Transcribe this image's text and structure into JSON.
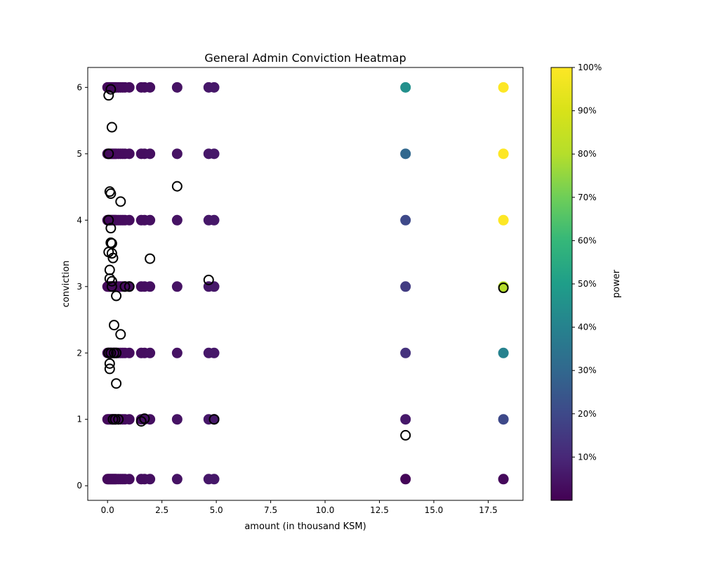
{
  "chart_data": {
    "type": "scatter",
    "title": "General Admin Conviction Heatmap",
    "xlabel": "amount (in thousand KSM)",
    "ylabel": "conviction",
    "xlim": [
      -0.91,
      19.1
    ],
    "ylim": [
      -0.22,
      6.3
    ],
    "x_ticks": [
      0,
      2.5,
      5,
      7.5,
      10,
      12.5,
      15,
      17.5
    ],
    "x_tick_labels": [
      "0.0",
      "2.5",
      "5.0",
      "7.5",
      "10.0",
      "12.5",
      "15.0",
      "17.5"
    ],
    "y_ticks": [
      0,
      1,
      2,
      3,
      4,
      5,
      6
    ],
    "y_tick_labels": [
      "0",
      "1",
      "2",
      "3",
      "4",
      "5",
      "6"
    ],
    "grid": false,
    "colormap": "viridis",
    "colorbar": {
      "label": "power",
      "range": [
        0.0,
        1.0
      ],
      "ticks": [
        0.1,
        0.2,
        0.3,
        0.4,
        0.5,
        0.6,
        0.7,
        0.8,
        0.9,
        1.0
      ],
      "tick_labels": [
        "10%",
        "20%",
        "30%",
        "40%",
        "50%",
        "60%",
        "70%",
        "80%",
        "90%",
        "100%"
      ]
    },
    "filled_points": {
      "conviction_levels": [
        0.1,
        1,
        2,
        3,
        4,
        5,
        6
      ],
      "amounts": [
        0.0,
        0.05,
        0.1,
        0.15,
        0.2,
        0.25,
        0.3,
        0.35,
        0.4,
        0.5,
        0.6,
        0.7,
        0.8,
        1.0,
        1.55,
        1.7,
        1.95,
        3.2,
        4.65,
        4.9,
        13.7,
        18.2
      ],
      "power_by_conviction": {
        "13.7": [
          0.01,
          0.06,
          0.13,
          0.16,
          0.2,
          0.3,
          0.45
        ],
        "18.2": [
          0.02,
          0.2,
          0.4,
          0.8,
          1.0,
          1.0,
          1.0
        ]
      },
      "default_power": 0.06,
      "default_power_base": 0.02
    },
    "vote_markers": {
      "style": "open-circle",
      "points": [
        {
          "x": 0.05,
          "y": 5.88
        },
        {
          "x": 0.15,
          "y": 5.97
        },
        {
          "x": 0.2,
          "y": 5.4
        },
        {
          "x": 0.05,
          "y": 5.0
        },
        {
          "x": 0.1,
          "y": 4.43
        },
        {
          "x": 0.15,
          "y": 4.4
        },
        {
          "x": 0.6,
          "y": 4.28
        },
        {
          "x": 3.2,
          "y": 4.51
        },
        {
          "x": 0.05,
          "y": 4.0
        },
        {
          "x": 0.15,
          "y": 3.88
        },
        {
          "x": 0.15,
          "y": 3.66
        },
        {
          "x": 0.2,
          "y": 3.65
        },
        {
          "x": 0.05,
          "y": 3.52
        },
        {
          "x": 0.2,
          "y": 3.5
        },
        {
          "x": 0.25,
          "y": 3.43
        },
        {
          "x": 1.95,
          "y": 3.42
        },
        {
          "x": 0.1,
          "y": 3.25
        },
        {
          "x": 0.1,
          "y": 3.12
        },
        {
          "x": 0.2,
          "y": 3.08
        },
        {
          "x": 4.65,
          "y": 3.1
        },
        {
          "x": 0.2,
          "y": 3.0
        },
        {
          "x": 0.8,
          "y": 3.0
        },
        {
          "x": 1.0,
          "y": 3.0
        },
        {
          "x": 0.4,
          "y": 2.86
        },
        {
          "x": 18.2,
          "y": 2.98
        },
        {
          "x": 0.3,
          "y": 2.42
        },
        {
          "x": 0.6,
          "y": 2.28
        },
        {
          "x": 0.05,
          "y": 2.0
        },
        {
          "x": 0.15,
          "y": 2.0
        },
        {
          "x": 0.3,
          "y": 2.0
        },
        {
          "x": 0.4,
          "y": 2.0
        },
        {
          "x": 0.1,
          "y": 1.84
        },
        {
          "x": 0.1,
          "y": 1.76
        },
        {
          "x": 0.4,
          "y": 1.54
        },
        {
          "x": 0.25,
          "y": 1.0
        },
        {
          "x": 0.35,
          "y": 1.0
        },
        {
          "x": 0.5,
          "y": 1.0
        },
        {
          "x": 1.55,
          "y": 0.97
        },
        {
          "x": 1.7,
          "y": 1.01
        },
        {
          "x": 4.9,
          "y": 1.0
        },
        {
          "x": 13.7,
          "y": 0.76
        }
      ]
    }
  }
}
